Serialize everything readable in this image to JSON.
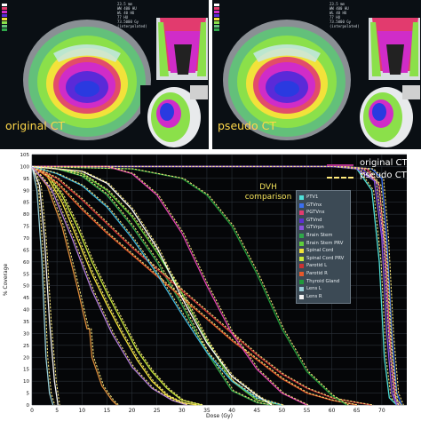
{
  "panels": [
    {
      "label": "original CT",
      "info": "23.5 mm\nWW 400 HU\nWL 40 HU\n77 HU\n73.5000 Gy\n(interpolated)"
    },
    {
      "label": "pseudo CT",
      "info": "23.5 mm\nWW 400 HU\nWL 40 HU\n77 HU\n73.5000 Gy\n(interpolated)"
    }
  ],
  "colors": {
    "original_line": "#b0338b",
    "pseudo_line": "#ffea7a",
    "plot_bg": "#050608"
  },
  "chart_data": {
    "type": "line",
    "title": "DVH comparison",
    "xlabel": "Dose (Gy)",
    "ylabel": "% Coverage",
    "xlim": [
      0,
      75
    ],
    "ylim": [
      0,
      105
    ],
    "x_ticks": [
      0,
      5,
      10,
      15,
      20,
      25,
      30,
      35,
      40,
      45,
      50,
      55,
      60,
      65,
      70
    ],
    "y_ticks": [
      0,
      5,
      10,
      15,
      20,
      25,
      30,
      35,
      40,
      45,
      50,
      55,
      60,
      65,
      70,
      75,
      80,
      85,
      90,
      95,
      100,
      105
    ],
    "grid": true,
    "legend_placement": "right",
    "style_legend": [
      {
        "name": "original CT",
        "style": "solid"
      },
      {
        "name": "pseudo CT",
        "style": "dashed"
      }
    ],
    "series": [
      {
        "name": "PTV1",
        "color": "#4fe0d8",
        "points": [
          [
            0,
            100
          ],
          [
            60,
            100
          ],
          [
            65,
            99
          ],
          [
            68,
            90
          ],
          [
            69.5,
            60
          ],
          [
            70.5,
            20
          ],
          [
            71.5,
            3
          ],
          [
            73,
            0
          ]
        ]
      },
      {
        "name": "GTVnx",
        "color": "#3a6ff0",
        "points": [
          [
            0,
            100
          ],
          [
            62,
            100
          ],
          [
            68,
            99
          ],
          [
            70,
            95
          ],
          [
            71,
            70
          ],
          [
            72,
            30
          ],
          [
            73,
            5
          ],
          [
            74,
            0
          ]
        ]
      },
      {
        "name": "PGTVnx",
        "color": "#e23b6e",
        "points": [
          [
            0,
            100
          ],
          [
            62,
            100
          ],
          [
            67,
            99
          ],
          [
            69.5,
            92
          ],
          [
            70.8,
            60
          ],
          [
            71.8,
            20
          ],
          [
            72.8,
            2
          ],
          [
            73.5,
            0
          ]
        ]
      },
      {
        "name": "GTVnd",
        "color": "#5d2fd0",
        "points": [
          [
            0,
            100
          ],
          [
            61,
            100
          ],
          [
            66,
            99
          ],
          [
            69,
            93
          ],
          [
            70.5,
            65
          ],
          [
            71.5,
            25
          ],
          [
            72.5,
            3
          ],
          [
            73.5,
            0
          ]
        ]
      },
      {
        "name": "GTVrpn",
        "color": "#8a53e0",
        "points": [
          [
            0,
            100
          ],
          [
            60,
            100
          ],
          [
            65,
            99
          ],
          [
            68.5,
            94
          ],
          [
            70,
            70
          ],
          [
            71,
            30
          ],
          [
            72,
            5
          ],
          [
            73,
            0
          ]
        ]
      },
      {
        "name": "Brain Stem",
        "color": "#2fa84a",
        "points": [
          [
            0,
            100
          ],
          [
            5,
            99
          ],
          [
            10,
            96
          ],
          [
            15,
            88
          ],
          [
            20,
            75
          ],
          [
            25,
            60
          ],
          [
            30,
            42
          ],
          [
            35,
            22
          ],
          [
            40,
            6
          ],
          [
            45,
            1
          ],
          [
            48,
            0
          ]
        ]
      },
      {
        "name": "Brain Stem PRV",
        "color": "#5fcf3b",
        "points": [
          [
            0,
            100
          ],
          [
            5,
            99
          ],
          [
            10,
            97
          ],
          [
            15,
            90
          ],
          [
            20,
            79
          ],
          [
            25,
            64
          ],
          [
            30,
            47
          ],
          [
            35,
            27
          ],
          [
            40,
            10
          ],
          [
            45,
            2
          ],
          [
            50,
            0
          ]
        ]
      },
      {
        "name": "Spinal Cord",
        "color": "#f2e23a",
        "points": [
          [
            0,
            100
          ],
          [
            3,
            96
          ],
          [
            6,
            85
          ],
          [
            9,
            70
          ],
          [
            12,
            55
          ],
          [
            15,
            42
          ],
          [
            18,
            30
          ],
          [
            21,
            19
          ],
          [
            24,
            10
          ],
          [
            27,
            4
          ],
          [
            30,
            1
          ],
          [
            33,
            0
          ]
        ]
      },
      {
        "name": "Spinal Cord PRV",
        "color": "#c8e83a",
        "points": [
          [
            0,
            100
          ],
          [
            3,
            97
          ],
          [
            6,
            88
          ],
          [
            9,
            75
          ],
          [
            12,
            60
          ],
          [
            15,
            47
          ],
          [
            18,
            35
          ],
          [
            21,
            23
          ],
          [
            24,
            14
          ],
          [
            27,
            7
          ],
          [
            30,
            2
          ],
          [
            34,
            0
          ]
        ]
      },
      {
        "name": "Parotid L",
        "color": "#cc3232",
        "points": [
          [
            0,
            100
          ],
          [
            5,
            95
          ],
          [
            10,
            86
          ],
          [
            15,
            76
          ],
          [
            20,
            66
          ],
          [
            25,
            57
          ],
          [
            30,
            48
          ],
          [
            35,
            39
          ],
          [
            40,
            30
          ],
          [
            45,
            21
          ],
          [
            50,
            13
          ],
          [
            55,
            7
          ],
          [
            60,
            3
          ],
          [
            65,
            1
          ],
          [
            68,
            0
          ]
        ]
      },
      {
        "name": "Parotid R",
        "color": "#e6582a",
        "points": [
          [
            0,
            100
          ],
          [
            5,
            93
          ],
          [
            10,
            82
          ],
          [
            15,
            72
          ],
          [
            20,
            63
          ],
          [
            25,
            54
          ],
          [
            30,
            45
          ],
          [
            35,
            36
          ],
          [
            40,
            27
          ],
          [
            45,
            19
          ],
          [
            50,
            11
          ],
          [
            55,
            5
          ],
          [
            60,
            2
          ],
          [
            65,
            0
          ]
        ]
      },
      {
        "name": "Thyroid Gland",
        "color": "#1f9a3a",
        "points": [
          [
            0,
            100
          ],
          [
            20,
            99
          ],
          [
            30,
            95
          ],
          [
            35,
            88
          ],
          [
            40,
            75
          ],
          [
            45,
            55
          ],
          [
            50,
            32
          ],
          [
            55,
            14
          ],
          [
            60,
            4
          ],
          [
            63,
            0
          ]
        ]
      },
      {
        "name": "Lens L",
        "color": "#9ad0d8",
        "points": [
          [
            0,
            100
          ],
          [
            1,
            90
          ],
          [
            2,
            60
          ],
          [
            2.8,
            20
          ],
          [
            3.5,
            5
          ],
          [
            4.2,
            0
          ]
        ]
      },
      {
        "name": "Lens R",
        "color": "#f2f2f2",
        "points": [
          [
            0,
            100
          ],
          [
            1.5,
            92
          ],
          [
            2.5,
            70
          ],
          [
            3.5,
            35
          ],
          [
            4.5,
            10
          ],
          [
            5.2,
            0
          ]
        ]
      },
      {
        "name": "",
        "color": "#d98a3a",
        "points": [
          [
            0,
            100
          ],
          [
            3,
            92
          ],
          [
            6,
            75
          ],
          [
            9,
            50
          ],
          [
            11,
            32
          ],
          [
            11.5,
            32
          ],
          [
            12,
            20
          ],
          [
            14,
            8
          ],
          [
            16,
            2
          ],
          [
            17,
            0
          ]
        ]
      },
      {
        "name": "",
        "color": "#b07cd8",
        "points": [
          [
            0,
            100
          ],
          [
            4,
            90
          ],
          [
            8,
            70
          ],
          [
            12,
            48
          ],
          [
            16,
            30
          ],
          [
            20,
            16
          ],
          [
            24,
            7
          ],
          [
            28,
            2
          ],
          [
            31,
            0
          ]
        ]
      },
      {
        "name": "",
        "color": "#3fb8e0",
        "points": [
          [
            0,
            100
          ],
          [
            5,
            97
          ],
          [
            10,
            92
          ],
          [
            15,
            83
          ],
          [
            20,
            70
          ],
          [
            25,
            55
          ],
          [
            30,
            38
          ],
          [
            35,
            22
          ],
          [
            40,
            10
          ],
          [
            45,
            3
          ],
          [
            50,
            0
          ]
        ]
      },
      {
        "name": "",
        "color": "#e040b0",
        "points": [
          [
            0,
            100
          ],
          [
            15,
            100
          ],
          [
            20,
            97
          ],
          [
            25,
            88
          ],
          [
            30,
            72
          ],
          [
            35,
            50
          ],
          [
            40,
            30
          ],
          [
            45,
            15
          ],
          [
            50,
            5
          ],
          [
            55,
            0
          ]
        ]
      },
      {
        "name": "",
        "color": "#ffffff",
        "points": [
          [
            0,
            100
          ],
          [
            10,
            98
          ],
          [
            15,
            93
          ],
          [
            20,
            82
          ],
          [
            25,
            66
          ],
          [
            30,
            45
          ],
          [
            35,
            26
          ],
          [
            40,
            12
          ],
          [
            45,
            4
          ],
          [
            48,
            0
          ]
        ]
      }
    ]
  }
}
